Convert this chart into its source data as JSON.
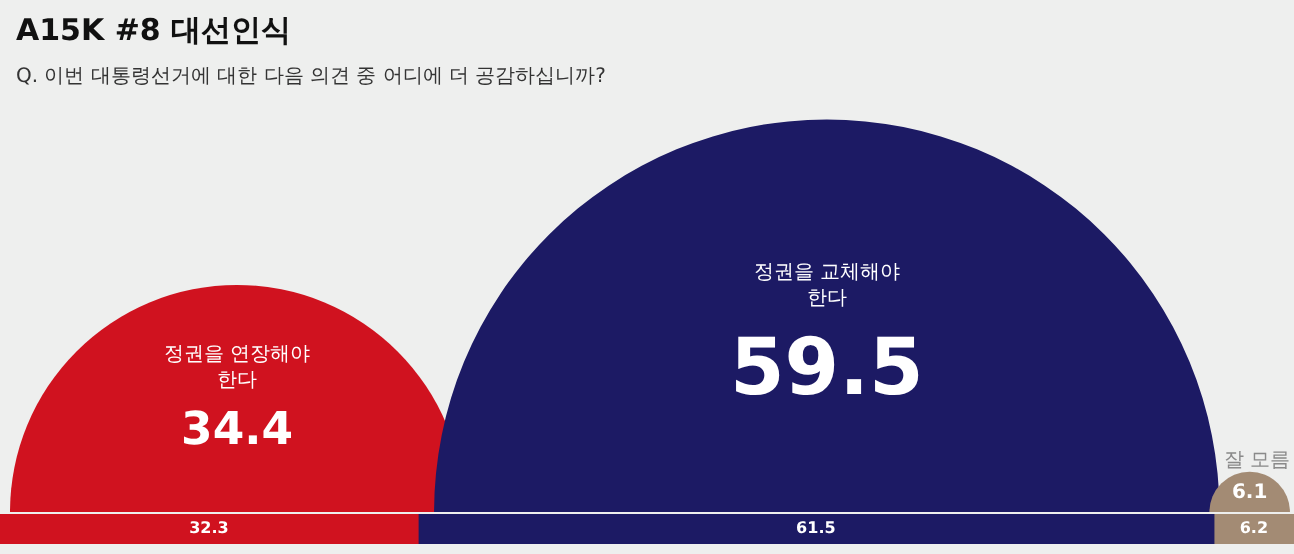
{
  "chart_data": [
    {
      "type": "other",
      "title": "A15K #8 대선인식",
      "subtitle": "Q. 이번 대통령선거에 대한 다음 의견 중 어디에 더 공감하십니까?",
      "categories": [
        "정권을 연장해야 한다",
        "정권을 교체해야 한다",
        "잘 모름"
      ],
      "values": [
        34.4,
        59.5,
        6.1
      ],
      "colors": [
        "#d0121f",
        "#1c1a64",
        "#a38b74"
      ],
      "data_labels": true
    },
    {
      "type": "bar",
      "orientation": "horizontal",
      "stacked": true,
      "categories": [
        null
      ],
      "xlim": [
        0,
        100
      ],
      "tick_labels": false,
      "data_labels": true,
      "series": [
        {
          "color": "#d0121f",
          "values": [
            32.3
          ]
        },
        {
          "color": "#1c1a64",
          "values": [
            61.5
          ]
        },
        {
          "color": "#a38b74",
          "values": [
            6.2
          ]
        }
      ]
    }
  ]
}
